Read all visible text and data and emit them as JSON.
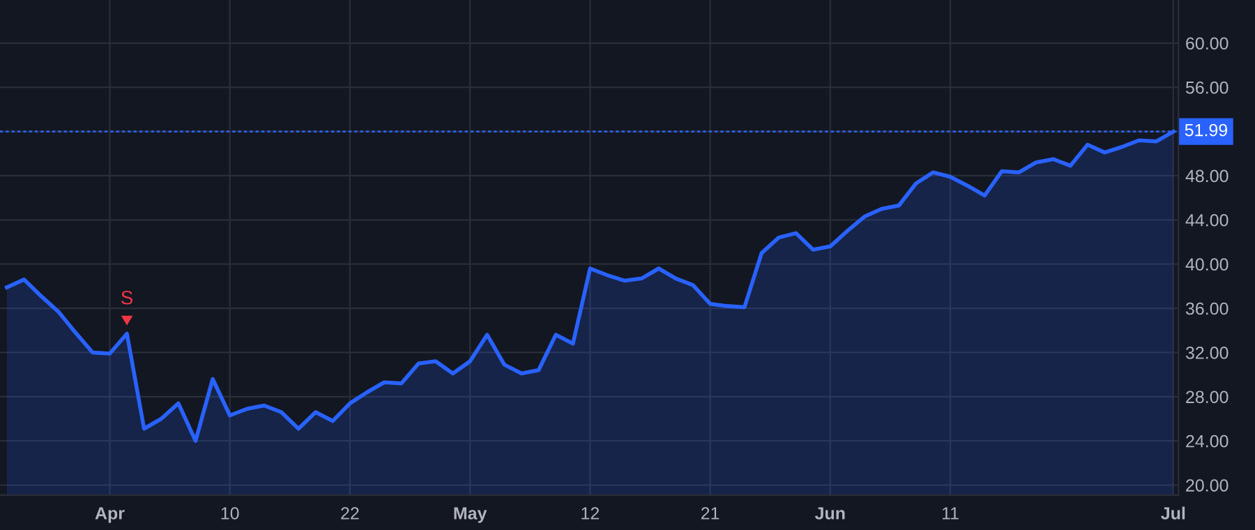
{
  "chart_data": {
    "type": "area",
    "categories": [
      null,
      null,
      null,
      null,
      null,
      null,
      "Apr",
      null,
      null,
      null,
      null,
      null,
      null,
      "10",
      null,
      null,
      null,
      null,
      null,
      null,
      "22",
      null,
      null,
      null,
      null,
      null,
      null,
      "May",
      null,
      null,
      null,
      null,
      null,
      null,
      "12",
      null,
      null,
      null,
      null,
      null,
      null,
      "21",
      null,
      null,
      null,
      null,
      null,
      null,
      "Jun",
      null,
      null,
      null,
      null,
      null,
      null,
      "11",
      null,
      null,
      null,
      null,
      null,
      null,
      null,
      null,
      null,
      null,
      null,
      null,
      "Jul"
    ],
    "series": [
      {
        "color": "#2962ff",
        "values": [
          37.9,
          38.6,
          37.1,
          35.7,
          33.8,
          32.0,
          31.9,
          33.7,
          25.1,
          26.0,
          27.4,
          24.0,
          29.6,
          26.3,
          26.9,
          27.2,
          26.6,
          25.1,
          26.6,
          25.8,
          27.4,
          28.4,
          29.3,
          29.2,
          31.0,
          31.2,
          30.1,
          31.2,
          33.6,
          30.9,
          30.1,
          30.4,
          33.6,
          32.8,
          39.6,
          39.0,
          38.5,
          38.7,
          39.6,
          38.7,
          38.1,
          36.4,
          36.2,
          36.1,
          41.0,
          42.4,
          42.8,
          41.3,
          41.6,
          43.0,
          44.3,
          45.0,
          45.3,
          47.3,
          48.3,
          47.9,
          47.1,
          46.2,
          48.4,
          48.3,
          49.2,
          49.5,
          48.9,
          50.8,
          50.1,
          50.6,
          51.2,
          51.1,
          51.99
        ]
      }
    ],
    "ylim": [
      19.1,
      63.9
    ],
    "yticks": [
      {
        "value": 20,
        "label": "20.00"
      },
      {
        "value": 24,
        "label": "24.00"
      },
      {
        "value": 28,
        "label": "28.00"
      },
      {
        "value": 32,
        "label": "32.00"
      },
      {
        "value": 36,
        "label": "36.00"
      },
      {
        "value": 40,
        "label": "40.00"
      },
      {
        "value": 44,
        "label": "44.00"
      },
      {
        "value": 48,
        "label": "48.00"
      },
      {
        "value": 52,
        "label": null
      },
      {
        "value": 56,
        "label": "56.00"
      },
      {
        "value": 60,
        "label": "60.00"
      }
    ],
    "ref_lines": [
      {
        "axis": "y",
        "value": 51.99,
        "label": "51.99",
        "color": "#2962ff",
        "line_style": "dotted"
      }
    ],
    "annotations": [
      {
        "text": "S",
        "y": 33.7
      }
    ],
    "grid": true,
    "legend": false
  }
}
